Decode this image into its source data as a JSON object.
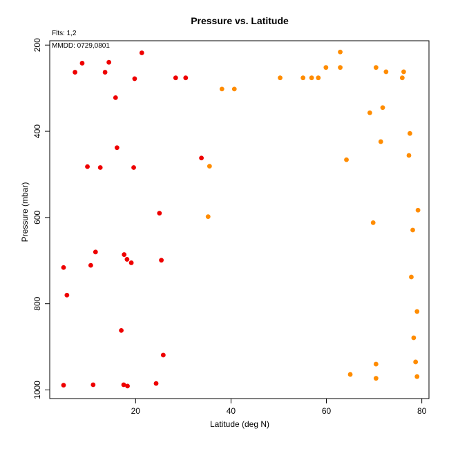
{
  "chart_data": {
    "type": "scatter",
    "title": "Pressure vs. Latitude",
    "xlabel": "Latitude (deg N)",
    "ylabel": "Pressure (mbar)",
    "xlim": [
      2,
      81.5
    ],
    "ylim": [
      1020,
      190
    ],
    "y_reversed": true,
    "x_ticks": [
      20,
      40,
      60,
      80
    ],
    "y_ticks": [
      200,
      400,
      600,
      800,
      1000
    ],
    "grid": false,
    "legend": "none",
    "annotations": [
      "Flts: 1,2",
      "MMDD: 0729,0801"
    ],
    "series": [
      {
        "color": "#ee0000",
        "points": [
          [
            21.3,
            218
          ],
          [
            8.8,
            242
          ],
          [
            14.4,
            240
          ],
          [
            7.3,
            263
          ],
          [
            13.6,
            263
          ],
          [
            19.8,
            278
          ],
          [
            15.8,
            322
          ],
          [
            16.1,
            438
          ],
          [
            9.9,
            482
          ],
          [
            12.6,
            484
          ],
          [
            19.6,
            484
          ],
          [
            25.0,
            590
          ],
          [
            11.6,
            680
          ],
          [
            17.6,
            686
          ],
          [
            18.2,
            697
          ],
          [
            4.9,
            716
          ],
          [
            10.6,
            711
          ],
          [
            19.1,
            705
          ],
          [
            25.4,
            699
          ],
          [
            5.6,
            780
          ],
          [
            17.0,
            862
          ],
          [
            25.8,
            919
          ],
          [
            4.9,
            989
          ],
          [
            11.1,
            988
          ],
          [
            17.5,
            988
          ],
          [
            18.3,
            991
          ],
          [
            24.3,
            985
          ],
          [
            28.4,
            276
          ],
          [
            30.5,
            276
          ],
          [
            33.8,
            462
          ]
        ]
      },
      {
        "color": "#ff8c00",
        "points": [
          [
            38.1,
            302
          ],
          [
            40.7,
            302
          ],
          [
            35.5,
            481
          ],
          [
            35.2,
            598
          ],
          [
            50.3,
            276
          ],
          [
            55.1,
            276
          ],
          [
            56.9,
            276
          ],
          [
            58.3,
            276
          ],
          [
            59.9,
            252
          ],
          [
            62.9,
            216
          ],
          [
            62.9,
            252
          ],
          [
            64.2,
            466
          ],
          [
            65.0,
            964
          ],
          [
            69.1,
            357
          ],
          [
            69.8,
            612
          ],
          [
            70.4,
            252
          ],
          [
            70.4,
            940
          ],
          [
            70.4,
            973
          ],
          [
            71.4,
            424
          ],
          [
            71.8,
            345
          ],
          [
            72.5,
            262
          ],
          [
            75.9,
            276
          ],
          [
            76.2,
            262
          ],
          [
            77.3,
            456
          ],
          [
            77.5,
            405
          ],
          [
            77.8,
            738
          ],
          [
            78.1,
            629
          ],
          [
            78.3,
            879
          ],
          [
            78.7,
            935
          ],
          [
            79.0,
            818
          ],
          [
            79.0,
            969
          ],
          [
            79.2,
            583
          ]
        ]
      }
    ]
  }
}
